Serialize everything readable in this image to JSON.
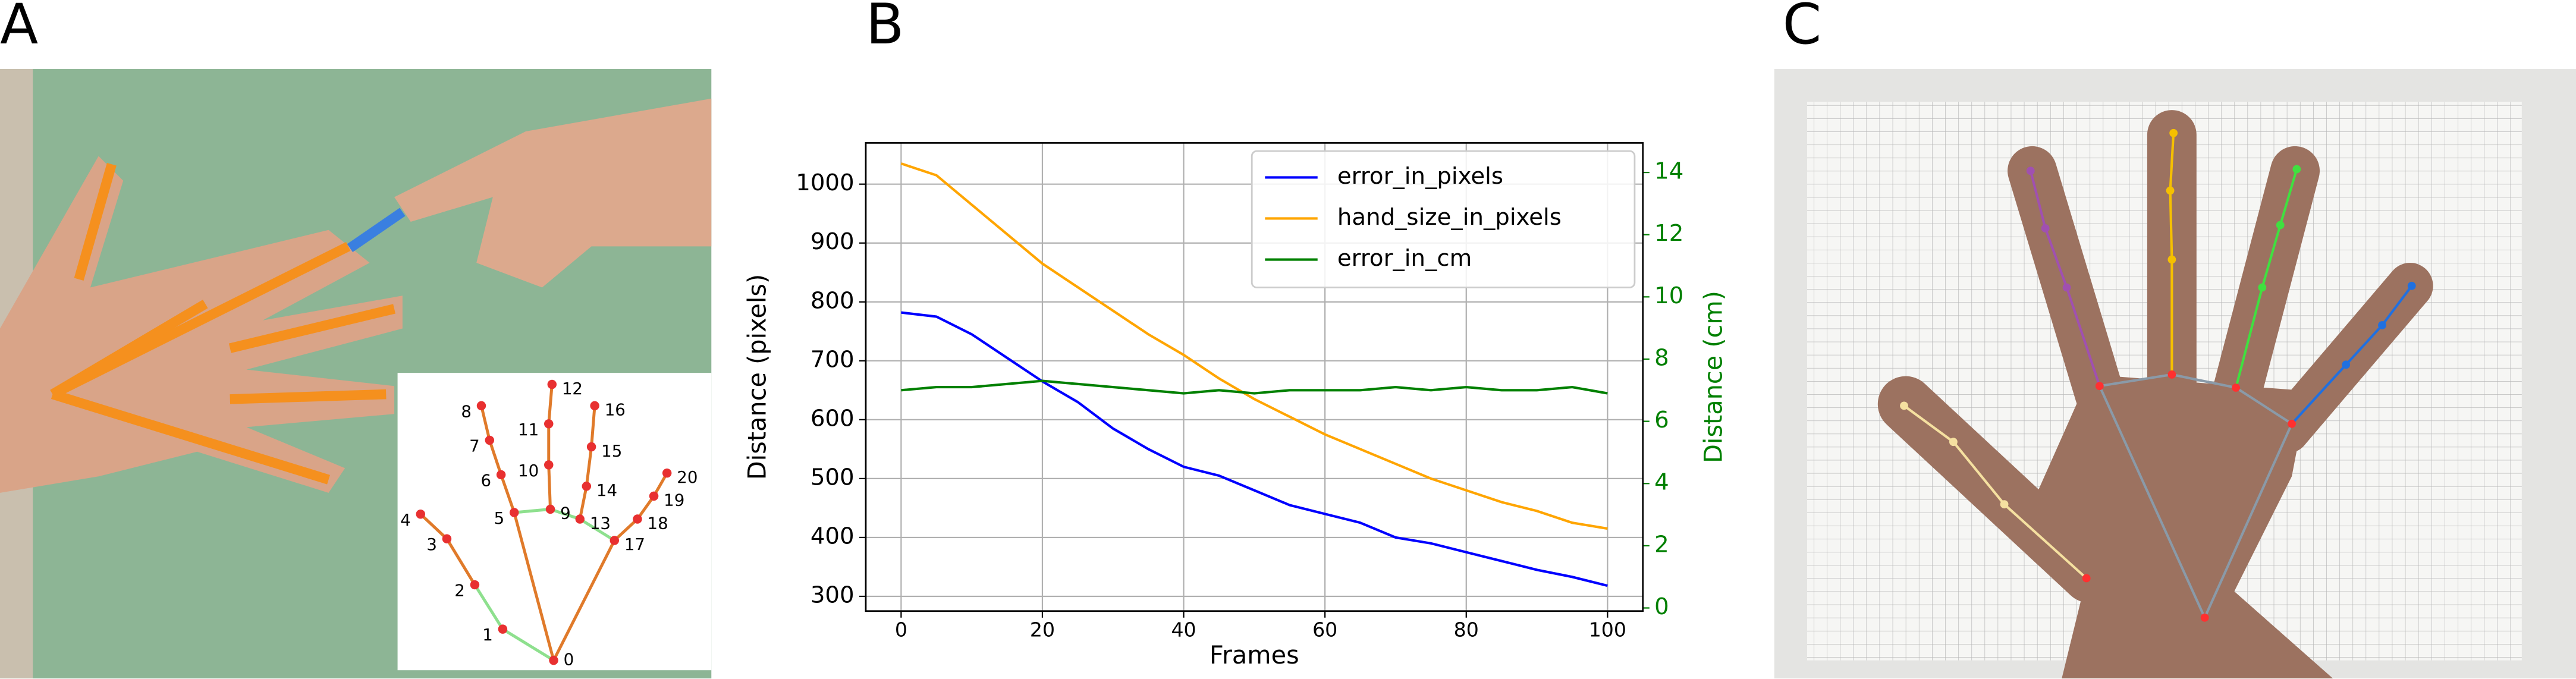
{
  "panels": [
    "A",
    "B",
    "C"
  ],
  "hand_landmark_labels": [
    "0",
    "1",
    "2",
    "3",
    "4",
    "5",
    "6",
    "7",
    "8",
    "9",
    "10",
    "11",
    "12",
    "13",
    "14",
    "15",
    "16",
    "17",
    "18",
    "19",
    "20"
  ],
  "chart_data": {
    "type": "line",
    "xlabel": "Frames",
    "ylabel": "Distance (pixels)",
    "y2label": "Distance (cm)",
    "x": [
      0,
      5,
      10,
      15,
      20,
      25,
      30,
      35,
      40,
      45,
      50,
      55,
      60,
      65,
      70,
      75,
      80,
      85,
      90,
      95,
      100
    ],
    "series": [
      {
        "name": "error_in_pixels",
        "color": "#0000ff",
        "values": [
          782,
          775,
          745,
          705,
          665,
          630,
          585,
          550,
          520,
          505,
          480,
          455,
          440,
          425,
          400,
          390,
          375,
          360,
          345,
          333,
          318
        ]
      },
      {
        "name": "hand_size_in_pixels",
        "color": "#ffa500",
        "values": [
          1035,
          1015,
          965,
          915,
          865,
          825,
          785,
          745,
          710,
          670,
          635,
          605,
          575,
          550,
          525,
          500,
          480,
          460,
          445,
          425,
          415
        ]
      },
      {
        "name": "error_in_cm",
        "color": "#008000",
        "axis": "y2",
        "values": [
          7.0,
          7.1,
          7.1,
          7.2,
          7.3,
          7.2,
          7.1,
          7.0,
          6.9,
          7.0,
          6.9,
          7.0,
          7.0,
          7.0,
          7.1,
          7.0,
          7.1,
          7.0,
          7.0,
          7.1,
          6.9
        ]
      }
    ],
    "xlim": [
      -5,
      105
    ],
    "xticks": [
      0,
      20,
      40,
      60,
      80,
      100
    ],
    "ylim": [
      275,
      1070
    ],
    "yticks": [
      300,
      400,
      500,
      600,
      700,
      800,
      900,
      1000
    ],
    "y2lim": [
      -0.1,
      14.95
    ],
    "y2ticks": [
      0,
      2,
      4,
      6,
      8,
      10,
      12,
      14
    ],
    "grid": true,
    "legend": "upper right"
  }
}
